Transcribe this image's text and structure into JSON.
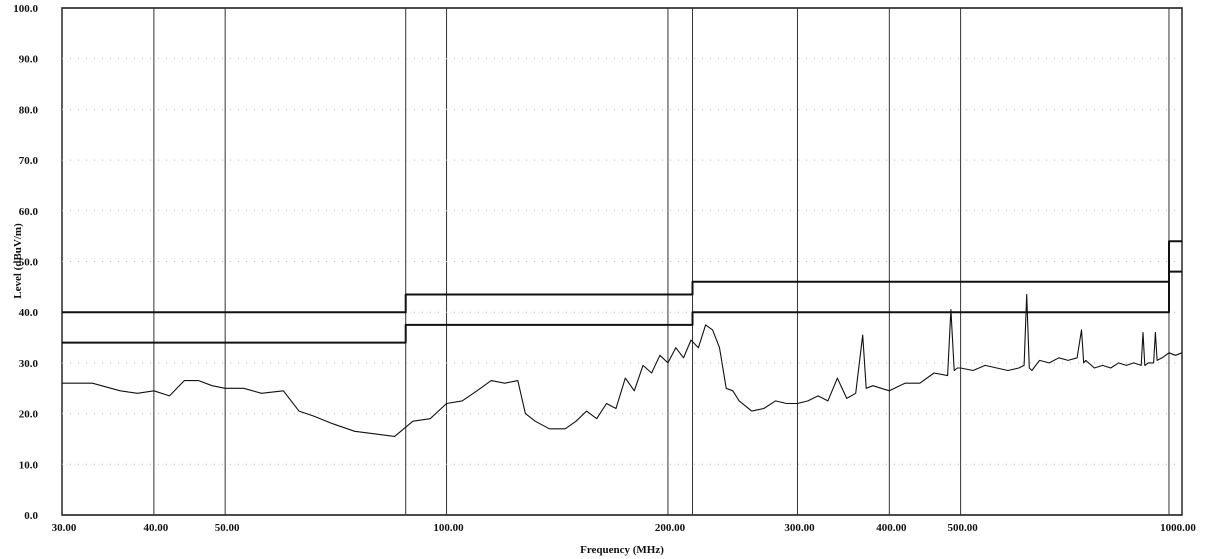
{
  "chart_data": {
    "type": "line",
    "title": "",
    "xlabel": "Frequency (MHz)",
    "ylabel": "Level (dBuV/m)",
    "x_scale": "log",
    "xlim": [
      30,
      1000
    ],
    "ylim": [
      0,
      100
    ],
    "grid": true,
    "x_ticks": [
      {
        "value": 30,
        "label": "30.00"
      },
      {
        "value": 40,
        "label": "40.00"
      },
      {
        "value": 50,
        "label": "50.00"
      },
      {
        "value": 100,
        "label": "100.00"
      },
      {
        "value": 200,
        "label": "200.00"
      },
      {
        "value": 300,
        "label": "300.00"
      },
      {
        "value": 400,
        "label": "400.00"
      },
      {
        "value": 500,
        "label": "500.00"
      },
      {
        "value": 1000,
        "label": "1000.00"
      }
    ],
    "x_grid_lines": [
      30,
      40,
      50,
      88,
      100,
      200,
      216,
      300,
      400,
      500,
      960,
      1000
    ],
    "y_ticks": [
      {
        "value": 0,
        "label": "0.0"
      },
      {
        "value": 10,
        "label": "10.0"
      },
      {
        "value": 20,
        "label": "20.0"
      },
      {
        "value": 30,
        "label": "30.0"
      },
      {
        "value": 40,
        "label": "40.0"
      },
      {
        "value": 50,
        "label": "50.0"
      },
      {
        "value": 60,
        "label": "60.0"
      },
      {
        "value": 70,
        "label": "70.0"
      },
      {
        "value": 80,
        "label": "80.0"
      },
      {
        "value": 90,
        "label": "90.0"
      },
      {
        "value": 100,
        "label": "100.0"
      }
    ],
    "series": [
      {
        "style": "step",
        "x": [
          30,
          88,
          88,
          216,
          216,
          960,
          960,
          1000
        ],
        "y": [
          40.0,
          40.0,
          43.5,
          43.5,
          46.0,
          46.0,
          54.0,
          54.0
        ]
      },
      {
        "style": "step",
        "x": [
          30,
          88,
          88,
          216,
          216,
          960,
          960,
          1000
        ],
        "y": [
          34.0,
          34.0,
          37.5,
          37.5,
          40.0,
          40.0,
          48.0,
          48.0
        ]
      },
      {
        "style": "line",
        "x": [
          30,
          33,
          36,
          38,
          40,
          42,
          44,
          46,
          48,
          50,
          53,
          56,
          60,
          63,
          66,
          70,
          75,
          80,
          85,
          90,
          95,
          100,
          105,
          110,
          115,
          120,
          125,
          128,
          132,
          138,
          145,
          150,
          155,
          160,
          165,
          170,
          175,
          180,
          185,
          190,
          195,
          200,
          205,
          210,
          215,
          220,
          225,
          230,
          235,
          240,
          245,
          250,
          260,
          270,
          280,
          290,
          300,
          310,
          320,
          330,
          340,
          350,
          360,
          368,
          372,
          380,
          390,
          400,
          420,
          440,
          460,
          480,
          485,
          490,
          495,
          500,
          520,
          540,
          560,
          580,
          600,
          610,
          615,
          620,
          625,
          640,
          660,
          680,
          700,
          720,
          730,
          735,
          740,
          760,
          780,
          800,
          820,
          840,
          860,
          880,
          885,
          890,
          900,
          915,
          920,
          925,
          940,
          960,
          980,
          1000
        ],
        "y": [
          26.0,
          26.0,
          24.5,
          24.0,
          24.5,
          23.5,
          26.5,
          26.5,
          25.5,
          25.0,
          25.0,
          24.0,
          24.5,
          20.5,
          19.5,
          18.0,
          16.5,
          16.0,
          15.5,
          18.5,
          19.0,
          22.0,
          22.5,
          24.5,
          26.5,
          26.0,
          26.5,
          20.0,
          18.5,
          17.0,
          17.0,
          18.5,
          20.5,
          19.0,
          22.0,
          21.0,
          27.0,
          24.5,
          29.5,
          28.0,
          31.5,
          30.0,
          33.0,
          31.0,
          34.5,
          33.0,
          37.5,
          36.5,
          33.0,
          25.0,
          24.5,
          22.5,
          20.5,
          21.0,
          22.5,
          22.0,
          22.0,
          22.5,
          23.5,
          22.5,
          27.0,
          23.0,
          24.0,
          35.5,
          25.0,
          25.5,
          25.0,
          24.5,
          26.0,
          26.0,
          28.0,
          27.5,
          40.5,
          28.5,
          29.0,
          29.0,
          28.5,
          29.5,
          29.0,
          28.5,
          29.0,
          29.5,
          43.5,
          29.0,
          28.5,
          30.5,
          30.0,
          31.0,
          30.5,
          31.0,
          36.5,
          30.0,
          30.5,
          29.0,
          29.5,
          29.0,
          30.0,
          29.5,
          30.0,
          29.5,
          36.0,
          29.5,
          30.0,
          30.0,
          36.0,
          30.5,
          31.0,
          32.0,
          31.5,
          32.0
        ]
      }
    ]
  }
}
